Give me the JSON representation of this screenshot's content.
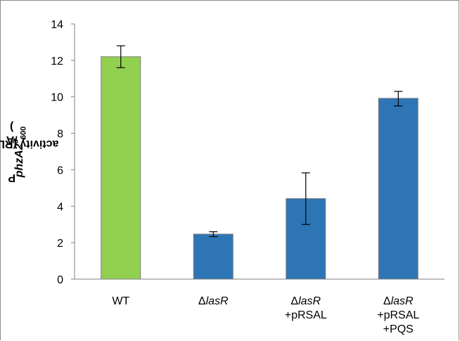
{
  "chart_data": {
    "type": "bar",
    "ylabel": {
      "prefix": "P",
      "gene": "phzA2",
      "suffix": " activity (RLU x 10",
      "sup": "3",
      "mid": "/A",
      "sub": "600",
      "end": ")"
    },
    "ylim": [
      0,
      14
    ],
    "yticks": [
      0,
      2,
      4,
      6,
      8,
      10,
      12,
      14
    ],
    "grid": false,
    "categories": [
      {
        "lines": [
          {
            "pre": "WT",
            "ital": "",
            "post": ""
          }
        ]
      },
      {
        "lines": [
          {
            "pre": "Δ",
            "ital": "lasR",
            "post": ""
          }
        ]
      },
      {
        "lines": [
          {
            "pre": "Δ",
            "ital": "lasR",
            "post": ""
          },
          {
            "pre": "+pRSAL",
            "ital": "",
            "post": ""
          }
        ]
      },
      {
        "lines": [
          {
            "pre": "Δ",
            "ital": "lasR",
            "post": ""
          },
          {
            "pre": "+pRSAL",
            "ital": "",
            "post": ""
          },
          {
            "pre": "+PQS",
            "ital": "",
            "post": ""
          }
        ]
      }
    ],
    "values": [
      12.2,
      2.47,
      4.42,
      9.92
    ],
    "error_low": [
      11.6,
      2.33,
      3.0,
      9.5
    ],
    "error_high": [
      12.8,
      2.6,
      5.83,
      10.3
    ],
    "colors": [
      "#92d050",
      "#2e75b6",
      "#2e75b6",
      "#2e75b6"
    ],
    "bar_border": "#7f7f7f"
  }
}
